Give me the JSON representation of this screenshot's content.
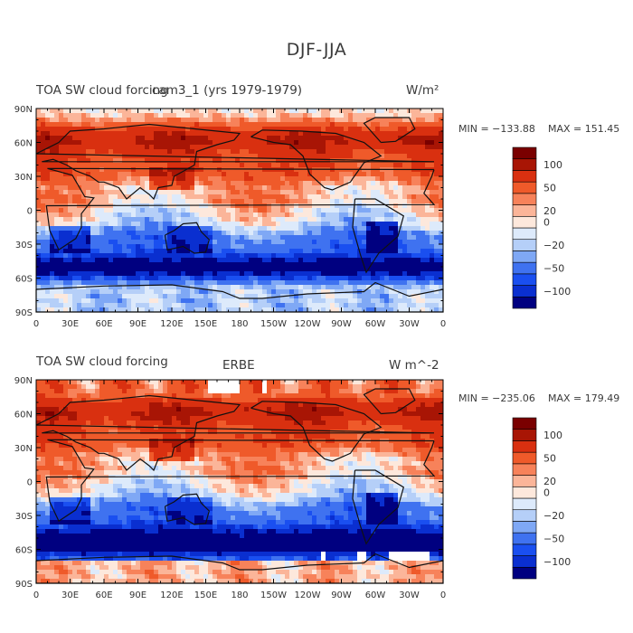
{
  "main_title": "DJF-JJA",
  "lon_ticks": [
    "0",
    "30E",
    "60E",
    "90E",
    "120E",
    "150E",
    "180",
    "150W",
    "120W",
    "90W",
    "60W",
    "30W",
    "0"
  ],
  "lat_ticks": [
    "90N",
    "60N",
    "30N",
    "0",
    "30S",
    "60S",
    "90S"
  ],
  "panels": [
    {
      "id": "top",
      "left_title": "TOA SW cloud forcing",
      "center_title": "cam3_1 (yrs 1979-1979)",
      "units": "W/m²",
      "min_label": "MIN = −133.88",
      "max_label": "MAX = 151.45",
      "colorbar_labels": [
        "100",
        "50",
        "20",
        "0",
        "−20",
        "−50",
        "−100"
      ]
    },
    {
      "id": "bottom",
      "left_title": "TOA SW cloud forcing",
      "center_title": "ERBE",
      "units": "W m^-2",
      "min_label": "MIN = −235.06",
      "max_label": "MAX = 179.49",
      "colorbar_labels": [
        "100",
        "50",
        "20",
        "0",
        "−20",
        "−50",
        "−100"
      ]
    }
  ],
  "colorbar_colors": [
    "#000080",
    "#0a2fd0",
    "#1a4ff0",
    "#3f72f0",
    "#7fa8f5",
    "#b5cff8",
    "#ddeafb",
    "#fde8dc",
    "#fbb599",
    "#f7825a",
    "#ef5a2a",
    "#d93010",
    "#a81505",
    "#7a0000"
  ],
  "chart_data": {
    "type": "heatmap",
    "title": "DJF-JJA",
    "projection": "cylindrical equidistant",
    "x_range_deg": [
      0,
      360
    ],
    "y_range_deg": [
      -90,
      90
    ],
    "colorbar_levels": [
      -120,
      -100,
      -80,
      -60,
      -50,
      -40,
      -30,
      -20,
      -10,
      0,
      10,
      20,
      30,
      40,
      50,
      60,
      80,
      100,
      120
    ],
    "description": "Global maps of December-February minus June-August TOA shortwave cloud forcing. Strong positive values (red) in the Northern Hemisphere mid/high latitudes, strong negative (blue) in the Southern Hemisphere mid latitudes (30S-70S)."
  }
}
